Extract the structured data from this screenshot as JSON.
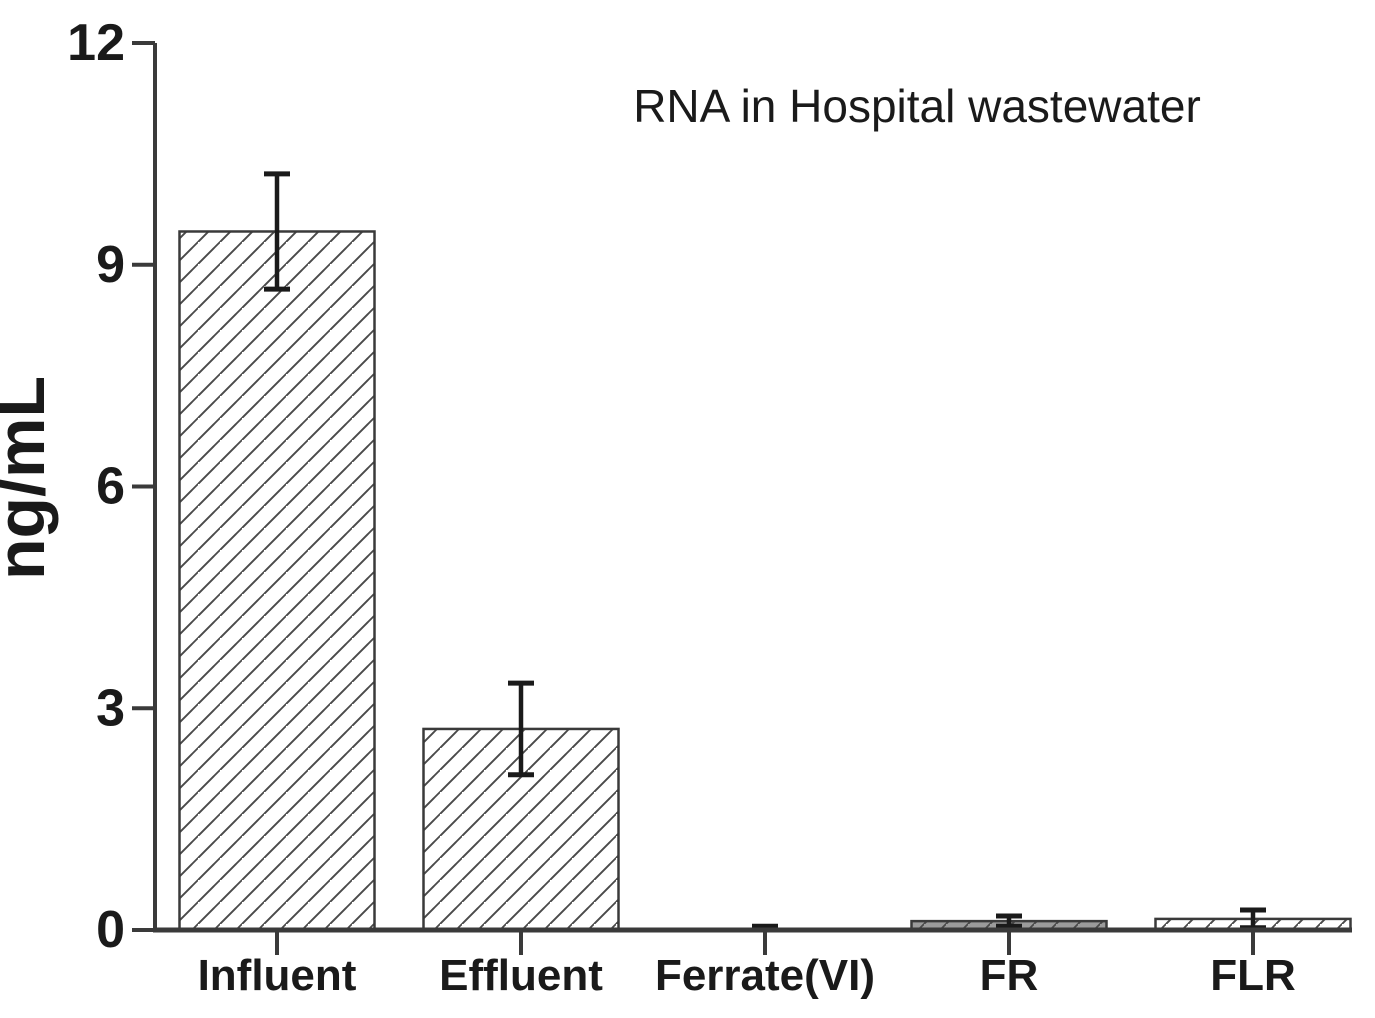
{
  "chart_data": {
    "type": "bar",
    "title": "RNA in Hospital wastewater",
    "xlabel": "",
    "ylabel": "ng/mL",
    "ylim": [
      0,
      12
    ],
    "yticks": [
      0,
      3,
      6,
      9,
      12
    ],
    "categories": [
      "Influent",
      "Effluent",
      "Ferrate(VI)",
      "FR",
      "FLR"
    ],
    "values": [
      9.45,
      2.72,
      0.02,
      0.12,
      0.15
    ],
    "errors": [
      0.78,
      0.62,
      0.03,
      0.07,
      0.12
    ],
    "bar_styles": [
      "hatch-white",
      "hatch-white",
      "none",
      "hatch-gray",
      "hatch-white"
    ],
    "grid": false,
    "legend_position": "none"
  },
  "colors": {
    "background": "#ffffff",
    "axis": "#3a3a3a",
    "tick_text": "#111111",
    "title_text": "#2b2b2b",
    "bar_stroke": "#3a3a3a",
    "hatch_line": "#4a4a4a",
    "bar_fill_white": "#ffffff",
    "bar_fill_gray": "#9b9b9b",
    "error_bar": "#1a1a1a"
  }
}
